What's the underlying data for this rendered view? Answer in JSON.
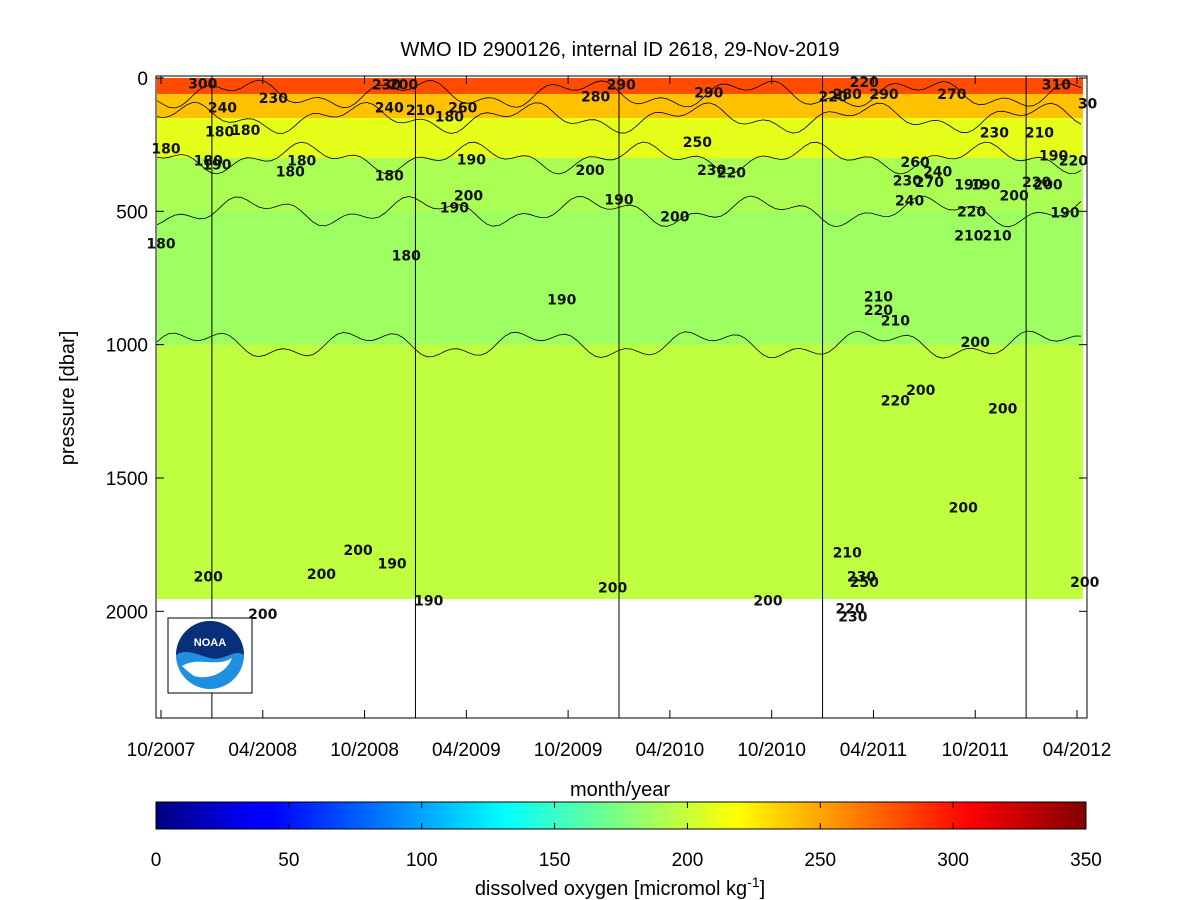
{
  "chart_data": {
    "type": "heatmap",
    "title": "WMO ID 2900126, internal ID 2618, 29-Nov-2019",
    "xlabel": "month/year",
    "ylabel": "pressure [dbar]",
    "x_ticks": [
      "10/2007",
      "04/2008",
      "10/2008",
      "04/2009",
      "10/2009",
      "04/2010",
      "10/2010",
      "04/2011",
      "10/2011",
      "04/2012"
    ],
    "x_range": [
      "2007-10",
      "2012-04"
    ],
    "y_ticks": [
      0,
      500,
      1000,
      1500,
      2000
    ],
    "y_range": [
      2400,
      0
    ],
    "y_reversed": true,
    "colorbar": {
      "label": "dissolved oxygen [micromol kg",
      "label_superscript": "-1",
      "label_close": "]",
      "ticks": [
        0,
        50,
        100,
        150,
        200,
        250,
        300,
        350
      ],
      "range": [
        0,
        350
      ],
      "colormap": "jet"
    },
    "profile_gaps": [
      "2008-01",
      "2009-01",
      "2010-01",
      "2011-01",
      "2012-01"
    ],
    "field_bands": [
      {
        "pressure": [
          0,
          60
        ],
        "oxygen": 280
      },
      {
        "pressure": [
          60,
          150
        ],
        "oxygen": 240
      },
      {
        "pressure": [
          150,
          300
        ],
        "oxygen": 210
      },
      {
        "pressure": [
          300,
          500
        ],
        "oxygen": 190
      },
      {
        "pressure": [
          500,
          1000
        ],
        "oxygen": 185
      },
      {
        "pressure": [
          1000,
          1950
        ],
        "oxygen": 197
      }
    ],
    "contour_labels": [
      {
        "text": "300",
        "date": "2007-12-15",
        "p": 20
      },
      {
        "text": "240",
        "date": "2008-01-20",
        "p": 110
      },
      {
        "text": "230",
        "date": "2008-04-20",
        "p": 75
      },
      {
        "text": "180",
        "date": "2008-01-15",
        "p": 200
      },
      {
        "text": "180",
        "date": "2008-03-01",
        "p": 195
      },
      {
        "text": "180",
        "date": "2007-10-10",
        "p": 265
      },
      {
        "text": "180",
        "date": "2007-12-25",
        "p": 310
      },
      {
        "text": "190",
        "date": "2008-01-10",
        "p": 325
      },
      {
        "text": "180",
        "date": "2008-06-10",
        "p": 310
      },
      {
        "text": "180",
        "date": "2008-05-20",
        "p": 350
      },
      {
        "text": "180",
        "date": "2007-10-01",
        "p": 620
      },
      {
        "text": "230",
        "date": "2008-11-10",
        "p": 25
      },
      {
        "text": "200",
        "date": "2008-12-10",
        "p": 25
      },
      {
        "text": "240",
        "date": "2008-11-15",
        "p": 110
      },
      {
        "text": "210",
        "date": "2009-01-10",
        "p": 120
      },
      {
        "text": "260",
        "date": "2009-03-25",
        "p": 110
      },
      {
        "text": "180",
        "date": "2009-03-01",
        "p": 145
      },
      {
        "text": "190",
        "date": "2009-04-10",
        "p": 305
      },
      {
        "text": "180",
        "date": "2008-11-15",
        "p": 365
      },
      {
        "text": "200",
        "date": "2009-04-05",
        "p": 440
      },
      {
        "text": "190",
        "date": "2009-03-10",
        "p": 485
      },
      {
        "text": "180",
        "date": "2008-12-15",
        "p": 665
      },
      {
        "text": "280",
        "date": "2009-11-20",
        "p": 70
      },
      {
        "text": "290",
        "date": "2010-01-05",
        "p": 25
      },
      {
        "text": "290",
        "date": "2010-06-10",
        "p": 55
      },
      {
        "text": "250",
        "date": "2010-05-20",
        "p": 240
      },
      {
        "text": "200",
        "date": "2009-11-10",
        "p": 345
      },
      {
        "text": "230",
        "date": "2010-06-15",
        "p": 345
      },
      {
        "text": "220",
        "date": "2010-07-20",
        "p": 355
      },
      {
        "text": "190",
        "date": "2010-01-01",
        "p": 455
      },
      {
        "text": "200",
        "date": "2010-04-10",
        "p": 520
      },
      {
        "text": "190",
        "date": "2009-09-20",
        "p": 830
      },
      {
        "text": "220",
        "date": "2011-01-20",
        "p": 70
      },
      {
        "text": "280",
        "date": "2011-02-15",
        "p": 60
      },
      {
        "text": "290",
        "date": "2011-04-20",
        "p": 60
      },
      {
        "text": "220",
        "date": "2011-03-15",
        "p": 15
      },
      {
        "text": "270",
        "date": "2011-08-20",
        "p": 60
      },
      {
        "text": "310",
        "date": "2012-02-25",
        "p": 25
      },
      {
        "text": "30",
        "date": "2012-04-20",
        "p": 95
      },
      {
        "text": "230",
        "date": "2011-11-05",
        "p": 205
      },
      {
        "text": "210",
        "date": "2012-01-25",
        "p": 205
      },
      {
        "text": "260",
        "date": "2011-06-15",
        "p": 315
      },
      {
        "text": "240",
        "date": "2011-07-25",
        "p": 350
      },
      {
        "text": "190",
        "date": "2012-02-20",
        "p": 290
      },
      {
        "text": "220",
        "date": "2012-03-25",
        "p": 310
      },
      {
        "text": "270",
        "date": "2011-07-10",
        "p": 390
      },
      {
        "text": "230",
        "date": "2011-06-01",
        "p": 385
      },
      {
        "text": "240",
        "date": "2011-06-05",
        "p": 460
      },
      {
        "text": "190",
        "date": "2011-09-20",
        "p": 400
      },
      {
        "text": "190",
        "date": "2011-10-20",
        "p": 400
      },
      {
        "text": "220",
        "date": "2012-01-20",
        "p": 390
      },
      {
        "text": "200",
        "date": "2012-02-10",
        "p": 400
      },
      {
        "text": "200",
        "date": "2011-12-10",
        "p": 440
      },
      {
        "text": "220",
        "date": "2011-09-25",
        "p": 500
      },
      {
        "text": "210",
        "date": "2011-09-20",
        "p": 590
      },
      {
        "text": "210",
        "date": "2011-11-10",
        "p": 590
      },
      {
        "text": "190",
        "date": "2012-03-10",
        "p": 505
      },
      {
        "text": "210",
        "date": "2011-04-10",
        "p": 820
      },
      {
        "text": "220",
        "date": "2011-04-10",
        "p": 870
      },
      {
        "text": "210",
        "date": "2011-05-10",
        "p": 910
      },
      {
        "text": "200",
        "date": "2011-10-01",
        "p": 990
      },
      {
        "text": "200",
        "date": "2011-06-25",
        "p": 1170
      },
      {
        "text": "220",
        "date": "2011-05-10",
        "p": 1210
      },
      {
        "text": "200",
        "date": "2011-11-20",
        "p": 1240
      },
      {
        "text": "200",
        "date": "2011-09-10",
        "p": 1610
      },
      {
        "text": "210",
        "date": "2011-02-15",
        "p": 1780
      },
      {
        "text": "230",
        "date": "2011-03-10",
        "p": 1870
      },
      {
        "text": "250",
        "date": "2011-03-15",
        "p": 1890
      },
      {
        "text": "220",
        "date": "2011-02-20",
        "p": 1990
      },
      {
        "text": "230",
        "date": "2011-02-25",
        "p": 2020
      },
      {
        "text": "200",
        "date": "2007-12-25",
        "p": 1870
      },
      {
        "text": "200",
        "date": "2008-07-15",
        "p": 1860
      },
      {
        "text": "200",
        "date": "2008-09-20",
        "p": 1770
      },
      {
        "text": "190",
        "date": "2008-11-20",
        "p": 1820
      },
      {
        "text": "200",
        "date": "2008-04-01",
        "p": 2010
      },
      {
        "text": "190",
        "date": "2009-01-25",
        "p": 1960
      },
      {
        "text": "200",
        "date": "2009-12-20",
        "p": 1910
      },
      {
        "text": "200",
        "date": "2010-09-25",
        "p": 1960
      },
      {
        "text": "200",
        "date": "2012-04-15",
        "p": 1890
      }
    ]
  }
}
